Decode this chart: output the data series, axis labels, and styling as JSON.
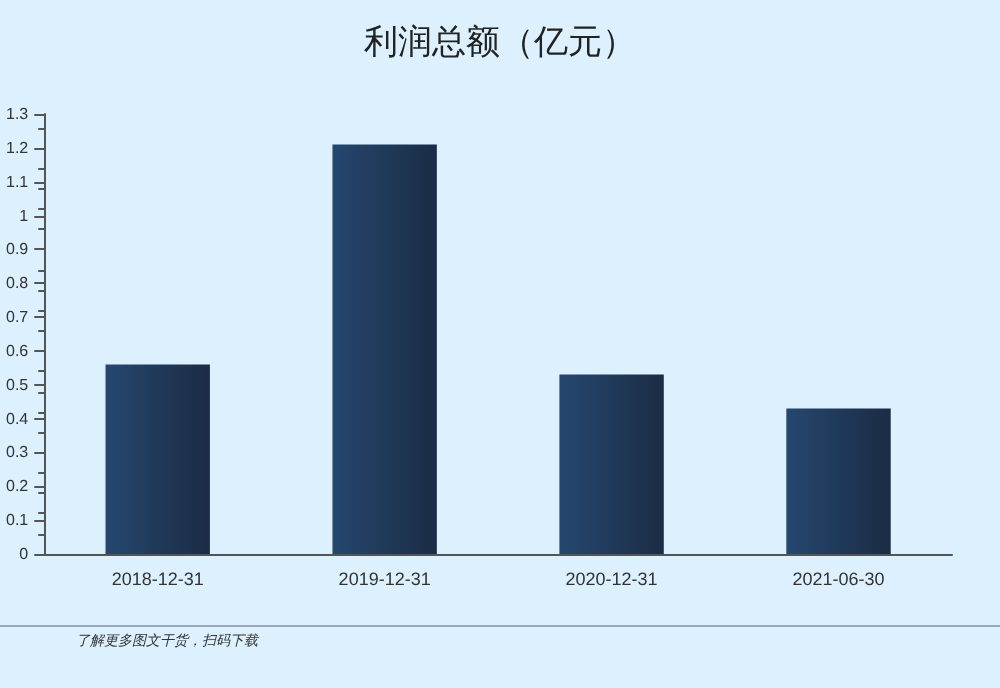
{
  "chart_data": {
    "type": "bar",
    "title": "利润总额（亿元）",
    "categories": [
      "2018-12-31",
      "2019-12-31",
      "2020-12-31",
      "2021-06-30"
    ],
    "values": [
      0.56,
      1.21,
      0.53,
      0.43
    ],
    "color": "#25476f",
    "ylim": [
      0,
      1.3
    ],
    "yticks": [
      0,
      0.1,
      0.2,
      0.3,
      0.4,
      0.5,
      0.6,
      0.7,
      0.8,
      0.9,
      1,
      1.1,
      1.2,
      1.3
    ],
    "grid": false,
    "annotations": [
      "了解更多图文干货，扫码下载"
    ]
  }
}
